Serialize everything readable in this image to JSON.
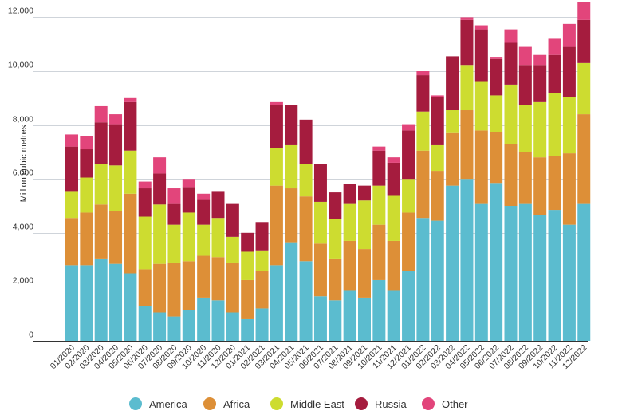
{
  "chart_data": {
    "type": "bar",
    "stacked": true,
    "ylabel": "Million cubic metres",
    "ylim": [
      0,
      12500
    ],
    "yticks": [
      0,
      2000,
      4000,
      6000,
      8000,
      10000,
      12000
    ],
    "ytick_labels": [
      "0",
      "2,000",
      "4,000",
      "6,000",
      "8,000",
      "10,000",
      "12,000"
    ],
    "grid": true,
    "legend_position": "bottom",
    "categories": [
      "01/2020",
      "02/2020",
      "03/2020",
      "04/2020",
      "05/2020",
      "06/2020",
      "07/2020",
      "08/2020",
      "09/2020",
      "10/2020",
      "11/2020",
      "12/2020",
      "01/2021",
      "02/2021",
      "03/2021",
      "04/2021",
      "05/2021",
      "06/2021",
      "07/2021",
      "08/2021",
      "09/2021",
      "10/2021",
      "11/2021",
      "12/2021",
      "01/2022",
      "02/2022",
      "03/2022",
      "04/2022",
      "05/2022",
      "06/2022",
      "07/2022",
      "08/2022",
      "09/2022",
      "10/2022",
      "11/2022",
      "12/2022"
    ],
    "series": [
      {
        "name": "America",
        "color": "#5bbccf",
        "values": [
          2800,
          2800,
          3050,
          2850,
          2500,
          1300,
          1050,
          900,
          1150,
          1600,
          1500,
          1050,
          800,
          1200,
          2800,
          3650,
          2950,
          1650,
          1500,
          1850,
          1600,
          2250,
          1850,
          2600,
          4550,
          4450,
          5750,
          6000,
          5100,
          5850,
          5000,
          5100,
          4650,
          4850,
          4300,
          5100
        ]
      },
      {
        "name": "Africa",
        "color": "#dd8f37",
        "values": [
          1750,
          1950,
          2000,
          1950,
          2950,
          1350,
          1800,
          2000,
          1800,
          1550,
          1600,
          1850,
          1450,
          1400,
          2950,
          2000,
          2400,
          1950,
          1550,
          1850,
          1800,
          2050,
          1850,
          2150,
          2500,
          1850,
          1950,
          2550,
          2700,
          1900,
          2300,
          1900,
          2150,
          2000,
          2650,
          3300
        ]
      },
      {
        "name": "Middle East",
        "color": "#cddc30",
        "values": [
          1000,
          1300,
          1500,
          1700,
          1600,
          1950,
          2200,
          1400,
          1800,
          1150,
          1450,
          950,
          1050,
          750,
          1400,
          1600,
          1200,
          1550,
          1450,
          1400,
          1800,
          1450,
          1700,
          1250,
          1450,
          950,
          850,
          1650,
          1800,
          1350,
          2200,
          1750,
          2050,
          2350,
          2100,
          1900
        ]
      },
      {
        "name": "Russia",
        "color": "#a51c3e",
        "values": [
          1650,
          1050,
          1550,
          1500,
          1800,
          1050,
          1150,
          800,
          950,
          950,
          1000,
          1250,
          700,
          1050,
          1600,
          1500,
          1650,
          1400,
          1000,
          700,
          550,
          1300,
          1200,
          1800,
          1350,
          1800,
          2000,
          1700,
          1950,
          1350,
          1550,
          1450,
          1350,
          1400,
          1850,
          1600
        ]
      },
      {
        "name": "Other",
        "color": "#e2457b",
        "values": [
          450,
          500,
          600,
          400,
          150,
          250,
          600,
          550,
          300,
          200,
          0,
          0,
          0,
          0,
          100,
          0,
          0,
          0,
          0,
          0,
          0,
          150,
          200,
          200,
          150,
          50,
          0,
          100,
          150,
          50,
          500,
          700,
          400,
          600,
          850,
          650
        ]
      }
    ]
  }
}
